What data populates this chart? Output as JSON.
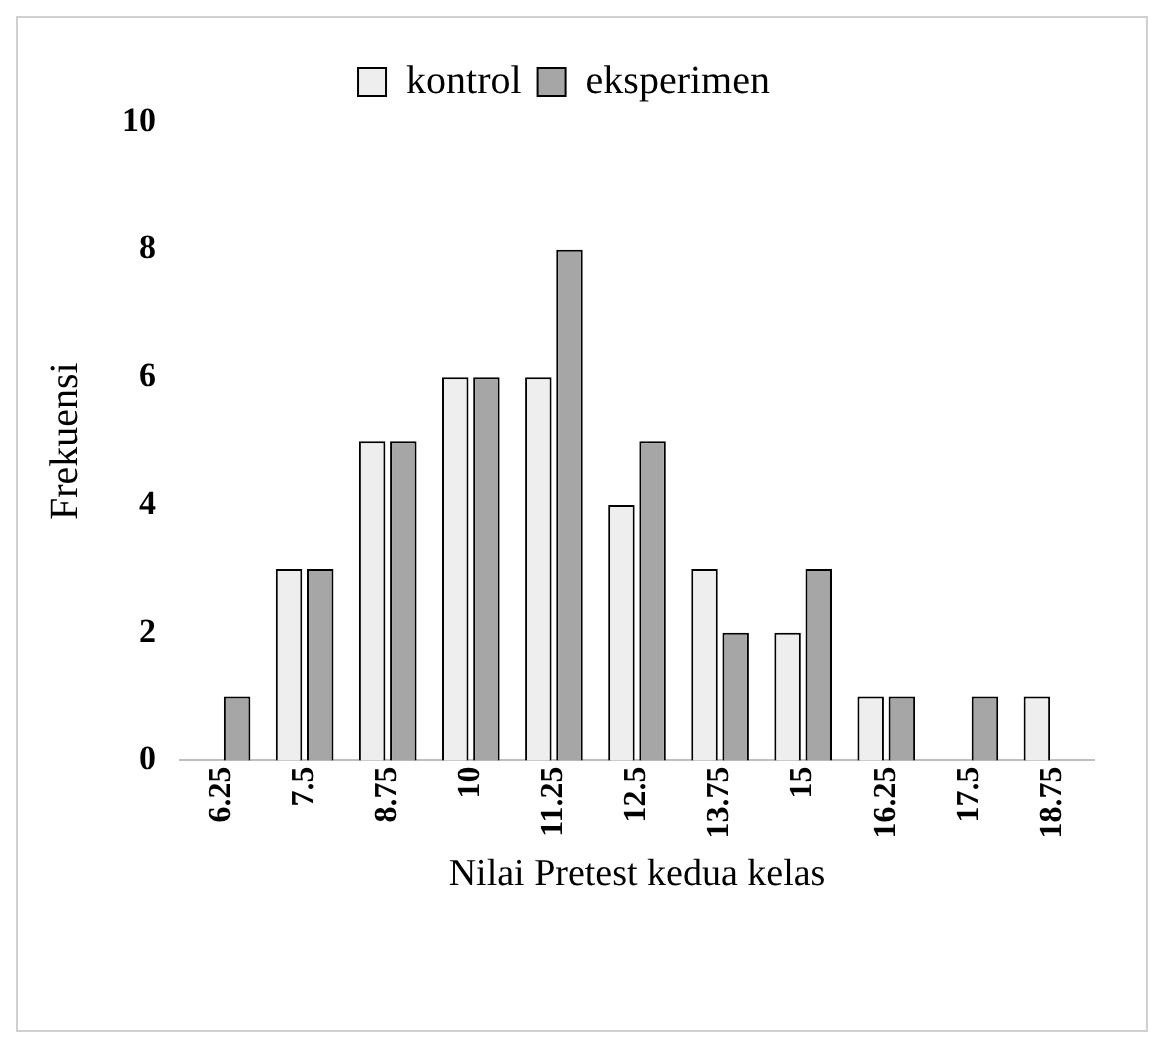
{
  "chart_data": {
    "type": "bar",
    "xlabel": "Nilai Pretest kedua kelas",
    "ylabel": "Frekuensi",
    "categories": [
      "6.25",
      "7.5",
      "8.75",
      "10",
      "11.25",
      "12.5",
      "13.75",
      "15",
      "16.25",
      "17.5",
      "18.75"
    ],
    "series": [
      {
        "name": "kontrol",
        "color": "#eeeeee",
        "values": [
          0,
          3,
          5,
          6,
          6,
          4,
          3,
          2,
          1,
          0,
          1
        ]
      },
      {
        "name": "eksperimen",
        "color": "#a6a6a6",
        "values": [
          1,
          3,
          5,
          6,
          8,
          5,
          2,
          3,
          1,
          1,
          0
        ]
      }
    ],
    "ylim": [
      0,
      10
    ],
    "yticks": [
      0,
      2,
      4,
      6,
      8,
      10
    ],
    "grid": false,
    "legend": "top"
  }
}
